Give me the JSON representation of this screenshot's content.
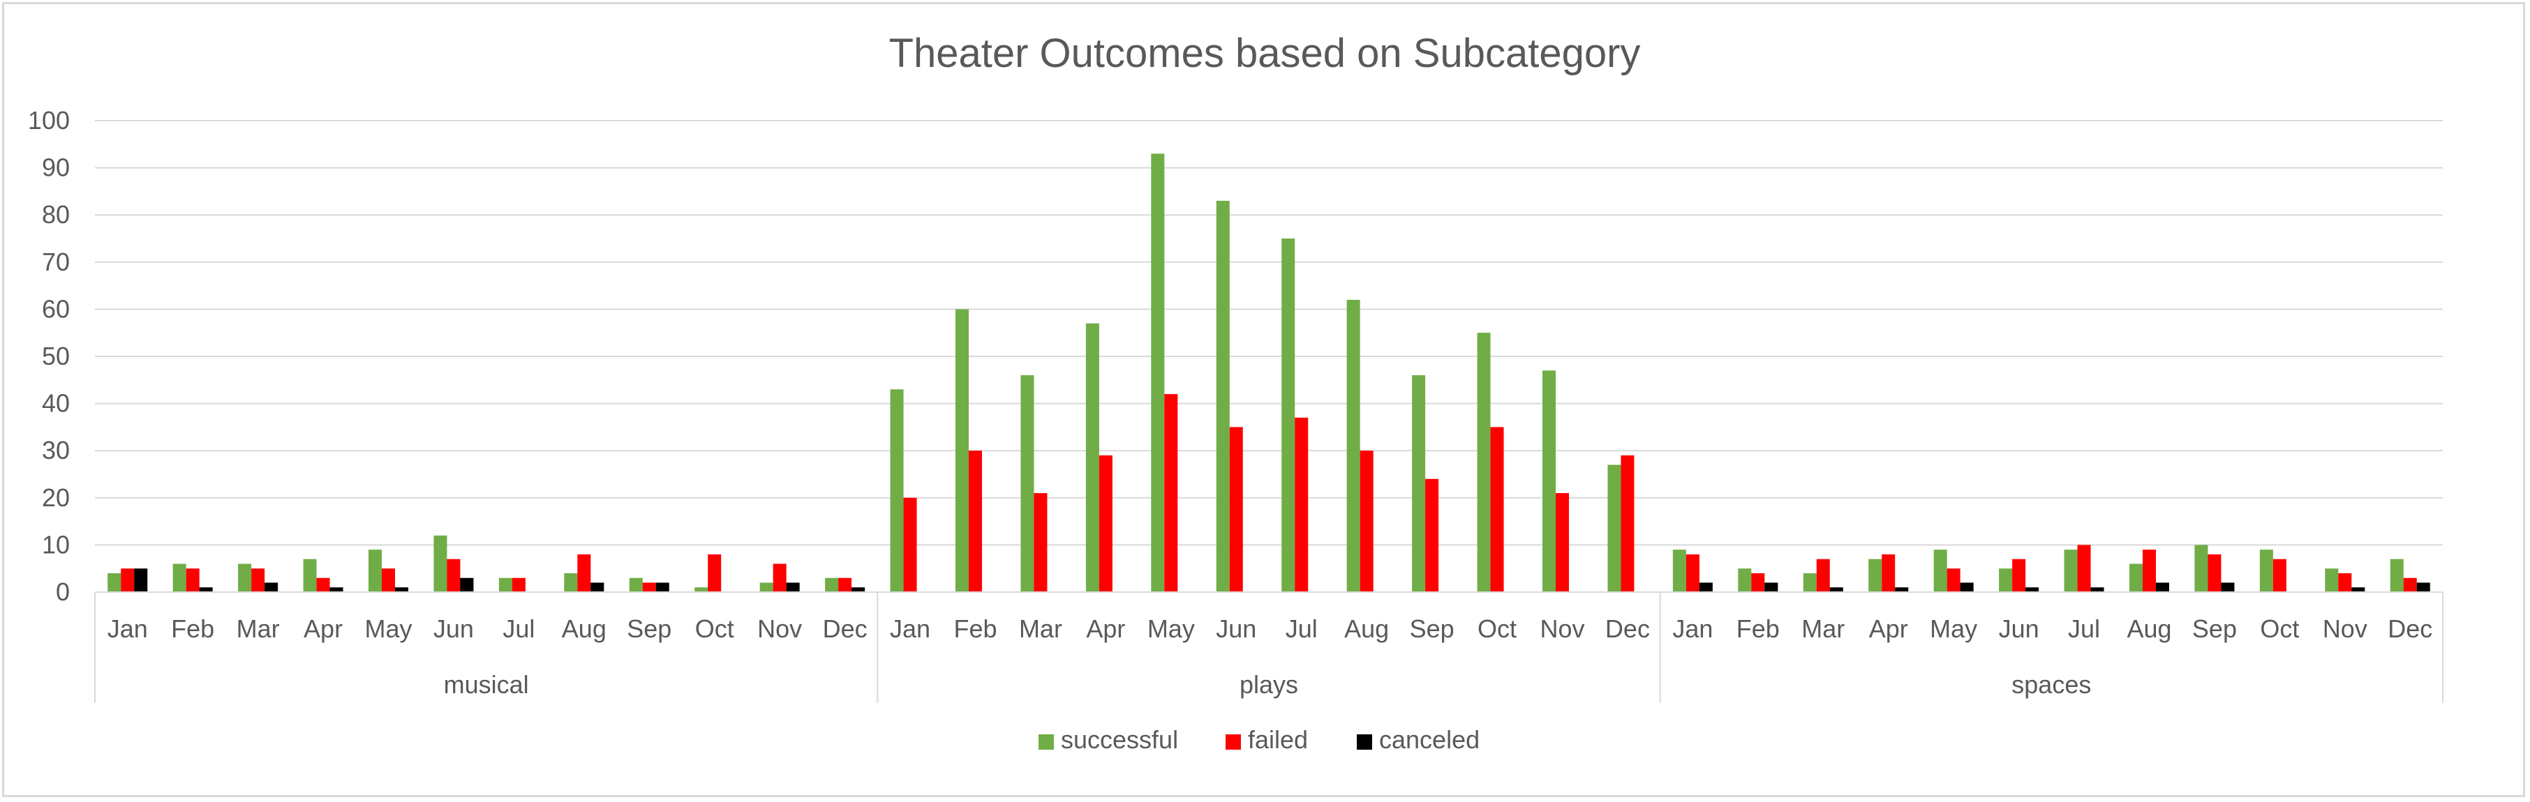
{
  "chart_data": {
    "type": "bar",
    "title": "Theater Outcomes based on Subcategory",
    "xlabel": "",
    "ylabel": "",
    "ylim": [
      0,
      100
    ],
    "yticks": [
      0,
      10,
      20,
      30,
      40,
      50,
      60,
      70,
      80,
      90,
      100
    ],
    "grid": true,
    "legend_position": "bottom",
    "groups": [
      "musical",
      "plays",
      "spaces"
    ],
    "months": [
      "Jan",
      "Feb",
      "Mar",
      "Apr",
      "May",
      "Jun",
      "Jul",
      "Aug",
      "Sep",
      "Oct",
      "Nov",
      "Dec"
    ],
    "series": [
      {
        "name": "successful",
        "color": "#70ad47",
        "values": [
          4,
          6,
          6,
          7,
          9,
          12,
          3,
          4,
          3,
          1,
          2,
          3,
          43,
          60,
          46,
          57,
          93,
          83,
          75,
          62,
          46,
          55,
          47,
          27,
          9,
          5,
          4,
          7,
          9,
          5,
          9,
          6,
          10,
          9,
          5,
          7
        ]
      },
      {
        "name": "failed",
        "color": "#ff0000",
        "values": [
          5,
          5,
          5,
          3,
          5,
          7,
          3,
          8,
          2,
          8,
          6,
          3,
          20,
          30,
          21,
          29,
          42,
          35,
          37,
          30,
          24,
          35,
          21,
          29,
          8,
          4,
          7,
          8,
          5,
          7,
          10,
          9,
          8,
          7,
          4,
          3
        ]
      },
      {
        "name": "canceled",
        "color": "#000000",
        "values": [
          5,
          1,
          2,
          1,
          1,
          3,
          0,
          2,
          2,
          0,
          2,
          1,
          0,
          0,
          0,
          0,
          0,
          0,
          0,
          0,
          0,
          0,
          0,
          0,
          2,
          2,
          1,
          1,
          2,
          1,
          1,
          2,
          2,
          0,
          1,
          2
        ]
      }
    ]
  }
}
